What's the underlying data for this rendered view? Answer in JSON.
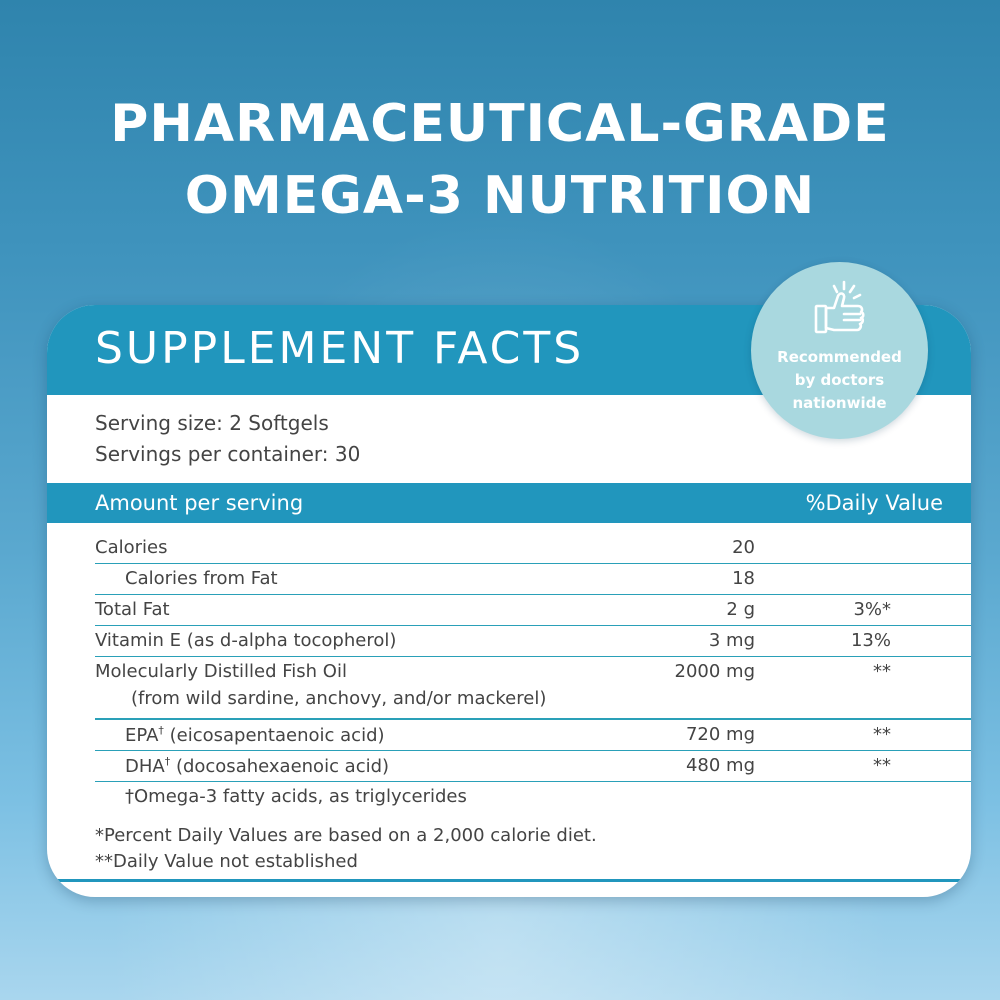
{
  "headline": {
    "line1": "PHARMACEUTICAL-GRADE",
    "line2": "OMEGA-3 NUTRITION"
  },
  "badge": {
    "icon": "thumbs-up-icon",
    "line1": "Recommended",
    "line2": "by doctors",
    "line3": "nationwide"
  },
  "facts": {
    "title": "SUPPLEMENT FACTS",
    "serving_size": "Serving size: 2 Softgels",
    "servings_per_container": "Servings per container: 30",
    "amount_header": "Amount per serving",
    "dv_header": "%Daily Value",
    "rows": [
      {
        "name": "Calories",
        "amount": "20",
        "dv": ""
      },
      {
        "name": "Calories from Fat",
        "amount": "18",
        "dv": ""
      },
      {
        "name": "Total Fat",
        "amount": "2 g",
        "dv": "3%*"
      },
      {
        "name": "Vitamin E (as d-alpha tocopherol)",
        "amount": "3 mg",
        "dv": "13%"
      },
      {
        "name": "Molecularly Distilled Fish Oil",
        "sub": "(from wild sardine, anchovy, and/or mackerel)",
        "amount": "2000 mg",
        "dv": "**"
      },
      {
        "name": "EPA",
        "name_sup": "†",
        "name_rest": " (eicosapentaenoic acid)",
        "amount": "720 mg",
        "dv": "**"
      },
      {
        "name": "DHA",
        "name_sup": "†",
        "name_rest": " (docosahexaenoic acid)",
        "amount": "480 mg",
        "dv": "**"
      },
      {
        "name": "†Omega-3 fatty acids, as triglycerides",
        "amount": "",
        "dv": ""
      }
    ],
    "footnote1": "*Percent Daily Values are based on a 2,000 calorie diet.",
    "footnote2": "**Daily Value not established"
  },
  "colors": {
    "brand_blue": "#2196bd",
    "badge_teal": "#a9d8df",
    "divider": "#2aa0b8"
  }
}
